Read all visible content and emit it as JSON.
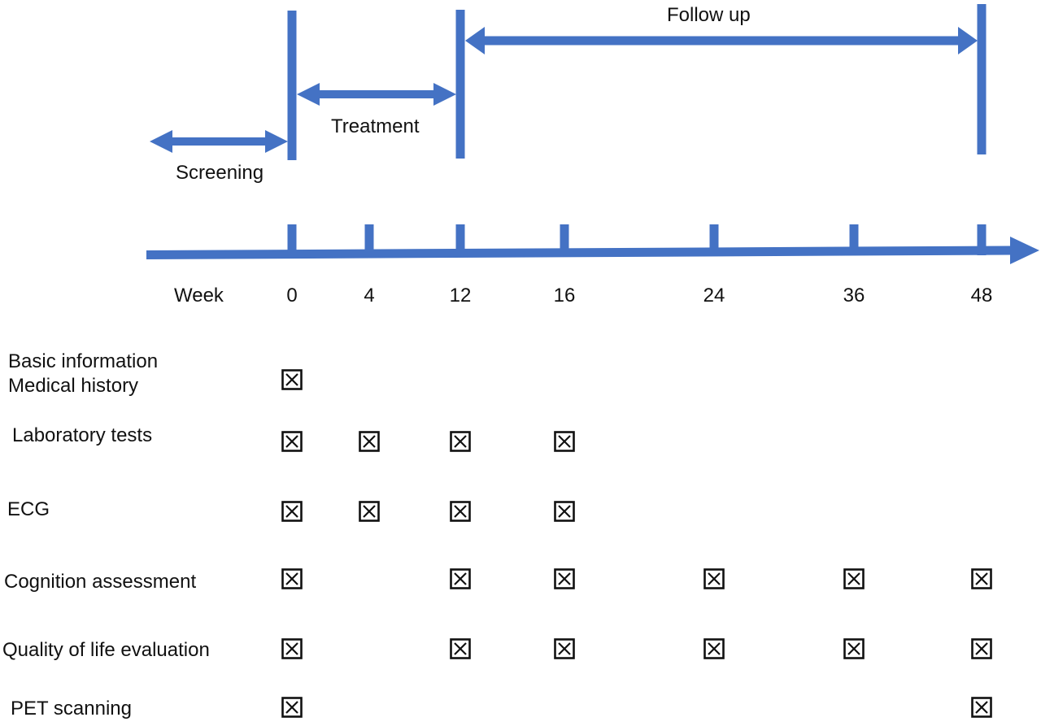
{
  "palette": {
    "accent_blue": "#4472C4",
    "ink": "#111111",
    "background": "#ffffff"
  },
  "phases": {
    "screening_label": "Screening",
    "treatment_label": "Treatment",
    "follow_up_label": "Follow up"
  },
  "timeline": {
    "axis_label": "Week",
    "weeks": [
      "0",
      "4",
      "12",
      "16",
      "24",
      "36",
      "48"
    ]
  },
  "schedule": {
    "checkbox_symbol": "x-marked-checkbox",
    "rows": [
      {
        "id": "basic-information-medical-history",
        "label_lines": [
          "Basic information",
          "Medical history"
        ],
        "checked_weeks": [
          "0"
        ]
      },
      {
        "id": "laboratory-tests",
        "label_lines": [
          "Laboratory tests"
        ],
        "checked_weeks": [
          "0",
          "4",
          "12",
          "16"
        ]
      },
      {
        "id": "ecg",
        "label_lines": [
          "ECG"
        ],
        "checked_weeks": [
          "0",
          "4",
          "12",
          "16"
        ]
      },
      {
        "id": "cognition-assessment",
        "label_lines": [
          "Cognition assessment"
        ],
        "checked_weeks": [
          "0",
          "12",
          "16",
          "24",
          "36",
          "48"
        ]
      },
      {
        "id": "quality-of-life-evaluation",
        "label_lines": [
          "Quality of life evaluation"
        ],
        "checked_weeks": [
          "0",
          "12",
          "16",
          "24",
          "36",
          "48"
        ]
      },
      {
        "id": "pet-scanning",
        "label_lines": [
          "PET scanning"
        ],
        "checked_weeks": [
          "0",
          "48"
        ]
      }
    ]
  }
}
